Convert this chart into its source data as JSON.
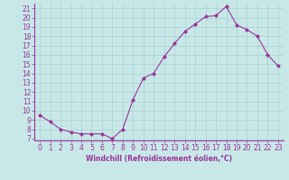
{
  "x": [
    0,
    1,
    2,
    3,
    4,
    5,
    6,
    7,
    8,
    9,
    10,
    11,
    12,
    13,
    14,
    15,
    16,
    17,
    18,
    19,
    20,
    21,
    22,
    23
  ],
  "y": [
    9.5,
    8.8,
    8.0,
    7.7,
    7.5,
    7.5,
    7.5,
    7.0,
    8.0,
    11.2,
    13.5,
    14.0,
    15.8,
    17.2,
    18.5,
    19.3,
    20.1,
    20.2,
    21.2,
    19.2,
    18.7,
    18.0,
    16.0,
    14.8
  ],
  "line_color": "#993399",
  "marker": "D",
  "marker_size": 2.0,
  "bg_color": "#c8e8e8",
  "grid_color": "#aed4d4",
  "xlabel": "Windchill (Refroidissement éolien,°C)",
  "xlabel_color": "#993399",
  "tick_color": "#993399",
  "axis_color": "#993399",
  "ylim": [
    6.8,
    21.5
  ],
  "xlim": [
    -0.5,
    23.5
  ],
  "yticks": [
    7,
    8,
    9,
    10,
    11,
    12,
    13,
    14,
    15,
    16,
    17,
    18,
    19,
    20,
    21
  ],
  "xticks": [
    0,
    1,
    2,
    3,
    4,
    5,
    6,
    7,
    8,
    9,
    10,
    11,
    12,
    13,
    14,
    15,
    16,
    17,
    18,
    19,
    20,
    21,
    22,
    23
  ],
  "tick_fontsize": 5.5,
  "xlabel_fontsize": 5.5
}
